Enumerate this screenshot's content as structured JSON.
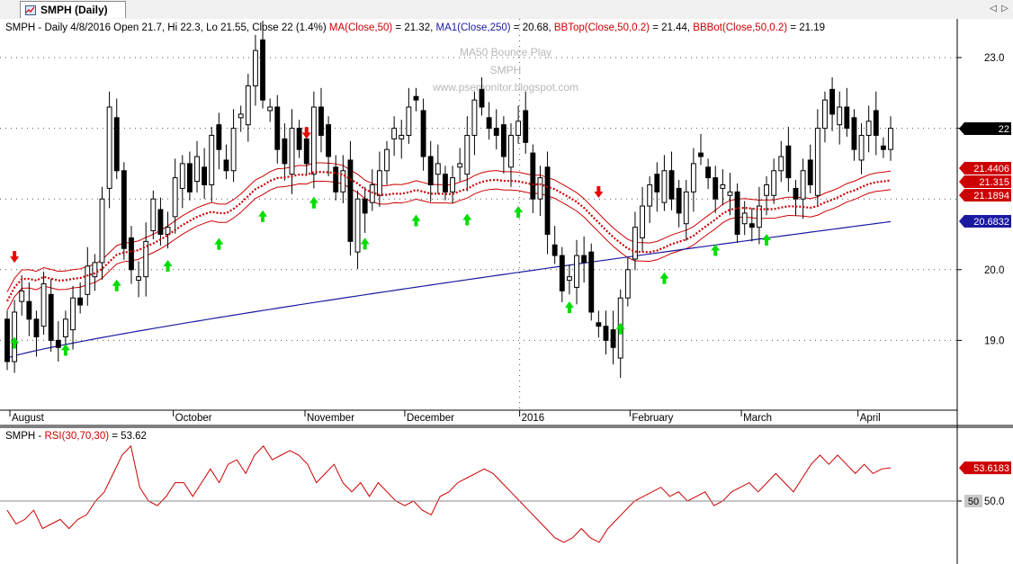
{
  "tab": {
    "title": "SMPH (Daily)",
    "icon": "chart-icon"
  },
  "nav": {
    "prev": "◁",
    "next": "▷"
  },
  "price_header": [
    {
      "text": "SMPH - Daily 4/8/2016 Open 21.7, Hi 22.3, Lo 21.55, Close 22 (1.4%) ",
      "color": "#000000"
    },
    {
      "text": "MA(Close,50)",
      "color": "#cc0000"
    },
    {
      "text": " = 21.32, ",
      "color": "#000000"
    },
    {
      "text": "MA1(Close,250)",
      "color": "#1a1aa0"
    },
    {
      "text": " = 20.68, ",
      "color": "#000000"
    },
    {
      "text": "BBTop(Close,50,0.2)",
      "color": "#cc0000"
    },
    {
      "text": " = 21.44, ",
      "color": "#000000"
    },
    {
      "text": "BBBot(Close,50,0.2)",
      "color": "#cc0000"
    },
    {
      "text": " = 21.19",
      "color": "#000000"
    }
  ],
  "watermark": [
    "MA50 Bounce Play",
    "SMPH",
    "www.psemonitor.blogspot.com"
  ],
  "rsi_header": [
    {
      "text": "SMPH - ",
      "color": "#000000"
    },
    {
      "text": "RSI(30,70,30)",
      "color": "#cc0000"
    },
    {
      "text": " = 53.62",
      "color": "#000000"
    }
  ],
  "colors": {
    "ma50": "#cc0000",
    "ma250": "#1a1aa0",
    "bands": "#cc0000",
    "rsi": "#cc0000",
    "buy": "#00dd00",
    "sell": "#ee0000",
    "bg": "#ffffff"
  },
  "chart_data": [
    {
      "type": "candlestick",
      "symbol": "SMPH",
      "period": "Daily",
      "ylim": [
        18.0,
        23.6
      ],
      "y_ticks": [
        19.0,
        20.0,
        22.0,
        23.0
      ],
      "x_labels": [
        "August",
        "October",
        "November",
        "December",
        "2016",
        "February",
        "March",
        "April"
      ],
      "grid": true,
      "value_tags": [
        {
          "label": "22",
          "value": 22.0,
          "style": "price"
        },
        {
          "label": "21.4406",
          "value": 21.44,
          "style": "band"
        },
        {
          "label": "21.315",
          "value": 21.315,
          "style": "ma"
        },
        {
          "label": "21.1894",
          "value": 21.19,
          "style": "band"
        },
        {
          "label": "20.6832",
          "value": 20.68,
          "style": "ma250"
        }
      ],
      "closes": [
        18.7,
        19.4,
        19.7,
        19.3,
        19.05,
        19.8,
        19.0,
        18.9,
        19.3,
        19.6,
        19.5,
        20.05,
        20.1,
        21.0,
        22.3,
        21.4,
        20.3,
        20.0,
        19.9,
        20.4,
        21.0,
        20.5,
        20.6,
        21.3,
        21.5,
        21.1,
        21.6,
        21.2,
        21.9,
        21.7,
        21.4,
        22.0,
        22.2,
        22.6,
        23.1,
        22.4,
        22.3,
        21.7,
        21.5,
        22.0,
        21.7,
        21.5,
        22.3,
        21.9,
        21.6,
        21.1,
        21.4,
        20.4,
        21.0,
        20.8,
        21.2,
        21.4,
        21.7,
        22.0,
        21.9,
        22.3,
        22.4,
        21.6,
        21.2,
        21.5,
        21.1,
        21.3,
        21.5,
        21.9,
        22.4,
        22.3,
        22.0,
        21.9,
        21.6,
        21.9,
        22.1,
        21.8,
        21.0,
        21.3,
        20.5,
        20.2,
        19.7,
        19.9,
        20.2,
        20.1,
        19.4,
        19.2,
        19.0,
        18.9,
        19.6,
        20.0,
        20.6,
        20.9,
        21.2,
        21.1,
        21.4,
        21.0,
        20.8,
        21.1,
        21.5,
        21.6,
        21.3,
        21.0,
        21.2,
        21.1,
        20.5,
        20.8,
        20.6,
        20.9,
        21.2,
        21.4,
        21.6,
        21.3,
        21.0,
        21.4,
        21.2,
        22.0,
        22.4,
        22.2,
        22.3,
        22.0,
        21.7,
        21.9,
        22.1,
        21.9,
        21.7,
        22.0
      ],
      "ma50_last": 21.32,
      "ma250_last": 20.68,
      "bbtop_last": 21.44,
      "bbbot_last": 21.19,
      "buy_signals": 16,
      "sell_signals": 3
    },
    {
      "type": "line",
      "name": "RSI(30,70,30)",
      "ylim": [
        43,
        57
      ],
      "y_ticks": [
        50.0
      ],
      "reference": 50.0,
      "last": 53.6183,
      "values": [
        49,
        47.5,
        48,
        49,
        47,
        47.5,
        48,
        47,
        48,
        48.5,
        50,
        51,
        53,
        55,
        56,
        51.5,
        50,
        49.5,
        50.5,
        52,
        52,
        50.5,
        52,
        53.5,
        52,
        54,
        54.5,
        53,
        55,
        56,
        54.5,
        55,
        55.5,
        55,
        54,
        52,
        53,
        54,
        52,
        51,
        52,
        50.5,
        52,
        51,
        50,
        49.5,
        50,
        49,
        48.5,
        50.5,
        51,
        52,
        52.5,
        53,
        53.5,
        53,
        52,
        51,
        50,
        49,
        48,
        47,
        46,
        45.5,
        46,
        47,
        46,
        45.5,
        47,
        48,
        49,
        50,
        50.5,
        51,
        51.5,
        50.5,
        51,
        50,
        50.5,
        51,
        49.5,
        50,
        51,
        51.5,
        52,
        51,
        52,
        53,
        52,
        51,
        52.5,
        54,
        55,
        54,
        55,
        54,
        53,
        54,
        53,
        53.5,
        53.62
      ]
    }
  ]
}
